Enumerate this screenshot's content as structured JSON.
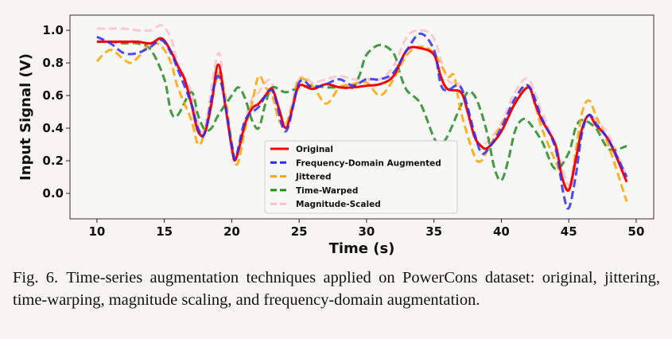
{
  "chart_data": {
    "type": "line",
    "title": "",
    "xlabel": "Time (s)",
    "ylabel": "Input Signal (V)",
    "xlim": [
      8.0,
      51.3
    ],
    "ylim": [
      -0.156,
      1.093
    ],
    "xticks": [
      10,
      15,
      20,
      25,
      30,
      35,
      40,
      45,
      50
    ],
    "xtick_labels": [
      "10",
      "15",
      "20",
      "25",
      "30",
      "35",
      "40",
      "45",
      "50"
    ],
    "yticks": [
      0.0,
      0.2,
      0.4,
      0.6,
      0.8,
      1.0
    ],
    "ytick_labels": [
      "0.0",
      "0.2",
      "0.4",
      "0.6",
      "0.8",
      "1.0"
    ],
    "grid": false,
    "legend_position": "lower-center",
    "series": [
      {
        "name": "Original",
        "color": "#ff0000",
        "style": "solid",
        "x": [
          10,
          11,
          12,
          13,
          14,
          14.8,
          15.5,
          16,
          16.5,
          17,
          17.5,
          18,
          18.5,
          19,
          19.5,
          20,
          20.3,
          21,
          21.5,
          22,
          22.5,
          23,
          23.5,
          24,
          24.5,
          25,
          26,
          27,
          28,
          29,
          30,
          31,
          32,
          33,
          34,
          35,
          35.5,
          36,
          37,
          37.5,
          38,
          38.5,
          39,
          40,
          41,
          42,
          42.5,
          43,
          44,
          44.5,
          45,
          45.5,
          46,
          46.5,
          47,
          48,
          49.3
        ],
        "y": [
          0.93,
          0.93,
          0.93,
          0.93,
          0.92,
          0.95,
          0.87,
          0.78,
          0.7,
          0.55,
          0.38,
          0.37,
          0.55,
          0.79,
          0.55,
          0.28,
          0.21,
          0.43,
          0.52,
          0.55,
          0.6,
          0.64,
          0.52,
          0.4,
          0.52,
          0.66,
          0.64,
          0.67,
          0.65,
          0.65,
          0.66,
          0.67,
          0.72,
          0.88,
          0.89,
          0.85,
          0.72,
          0.64,
          0.62,
          0.5,
          0.35,
          0.29,
          0.28,
          0.38,
          0.55,
          0.65,
          0.55,
          0.45,
          0.3,
          0.1,
          0.02,
          0.2,
          0.4,
          0.48,
          0.42,
          0.32,
          0.07
        ]
      },
      {
        "name": "Frequency-Domain Augmented",
        "color": "#2b2bff",
        "style": "dashed",
        "x": [
          10,
          11,
          12,
          13,
          14,
          14.8,
          15.5,
          16,
          17,
          17.5,
          18,
          19,
          20,
          20.3,
          21,
          22,
          23,
          24,
          25,
          26,
          27,
          28,
          29,
          30,
          31,
          32,
          33,
          34,
          35,
          35.5,
          36,
          37,
          38,
          38.5,
          39,
          40,
          41,
          42,
          43,
          44,
          44.6,
          45,
          45.5,
          46,
          46.5,
          47,
          48,
          49.3
        ],
        "y": [
          0.96,
          0.92,
          0.86,
          0.86,
          0.9,
          0.94,
          0.86,
          0.76,
          0.55,
          0.4,
          0.37,
          0.72,
          0.3,
          0.22,
          0.45,
          0.53,
          0.63,
          0.38,
          0.68,
          0.65,
          0.67,
          0.7,
          0.66,
          0.7,
          0.7,
          0.74,
          0.88,
          0.98,
          0.88,
          0.67,
          0.63,
          0.65,
          0.37,
          0.25,
          0.27,
          0.4,
          0.58,
          0.66,
          0.46,
          0.28,
          0.0,
          -0.09,
          0.1,
          0.38,
          0.48,
          0.43,
          0.32,
          0.1
        ]
      },
      {
        "name": "Jittered",
        "color": "#ffa500",
        "style": "dashed",
        "x": [
          10,
          11,
          12,
          12.5,
          13,
          14,
          14.8,
          15.5,
          16,
          17,
          17.5,
          18,
          19,
          19.5,
          20.3,
          21,
          21.5,
          22,
          22.5,
          23,
          23.5,
          24,
          24.5,
          25,
          26,
          27,
          28,
          29,
          30,
          31,
          32,
          33,
          34,
          35,
          36,
          36.5,
          37,
          38,
          38.5,
          39,
          40,
          41,
          42,
          43,
          44,
          45,
          45.5,
          46,
          46.5,
          47,
          48,
          49.3
        ],
        "y": [
          0.81,
          0.88,
          0.82,
          0.8,
          0.83,
          0.92,
          0.9,
          0.8,
          0.65,
          0.45,
          0.3,
          0.38,
          0.73,
          0.6,
          0.18,
          0.4,
          0.55,
          0.72,
          0.65,
          0.6,
          0.45,
          0.42,
          0.55,
          0.7,
          0.66,
          0.55,
          0.65,
          0.67,
          0.68,
          0.6,
          0.7,
          0.85,
          0.9,
          0.86,
          0.72,
          0.72,
          0.5,
          0.23,
          0.2,
          0.27,
          0.42,
          0.56,
          0.66,
          0.4,
          0.2,
          0.02,
          0.25,
          0.5,
          0.57,
          0.48,
          0.28,
          -0.05
        ]
      },
      {
        "name": "Time-Warped",
        "color": "#228b22",
        "style": "dashed",
        "x": [
          10,
          11,
          12,
          13,
          14,
          15,
          15.5,
          16,
          17,
          17.5,
          18,
          18.5,
          19,
          20,
          20.5,
          21,
          21.5,
          22,
          22.5,
          23,
          24,
          25,
          26,
          27,
          28,
          29,
          29.5,
          30,
          31,
          32,
          32.5,
          33,
          34,
          35,
          35.5,
          36,
          37,
          37.5,
          38,
          38.5,
          39,
          39.5,
          40,
          40.5,
          41,
          41.5,
          42,
          43,
          44,
          45,
          45.5,
          46,
          47,
          48,
          49.3
        ],
        "y": [
          0.93,
          0.93,
          0.92,
          0.92,
          0.88,
          0.7,
          0.5,
          0.48,
          0.62,
          0.48,
          0.39,
          0.4,
          0.48,
          0.6,
          0.65,
          0.58,
          0.45,
          0.4,
          0.55,
          0.65,
          0.62,
          0.65,
          0.66,
          0.65,
          0.65,
          0.65,
          0.73,
          0.85,
          0.91,
          0.86,
          0.73,
          0.63,
          0.55,
          0.34,
          0.31,
          0.35,
          0.54,
          0.62,
          0.6,
          0.5,
          0.35,
          0.15,
          0.08,
          0.2,
          0.38,
          0.45,
          0.44,
          0.32,
          0.15,
          0.25,
          0.4,
          0.45,
          0.4,
          0.27,
          0.29
        ]
      },
      {
        "name": "Magnitude-Scaled",
        "color": "#ffc0cb",
        "style": "dashed",
        "x": [
          10,
          11,
          12,
          13,
          14,
          14.8,
          15.5,
          16,
          17,
          17.5,
          18,
          19,
          19.5,
          20.3,
          21,
          21.5,
          22,
          22.5,
          23,
          24,
          25,
          26,
          27,
          28,
          29,
          30,
          31,
          32,
          33,
          34,
          35,
          36,
          37,
          38,
          38.5,
          39,
          40,
          41,
          42,
          43,
          44,
          45,
          45.5,
          46,
          46.5,
          47,
          48,
          49.3
        ],
        "y": [
          1.01,
          1.01,
          1.01,
          1.0,
          1.0,
          1.03,
          0.95,
          0.8,
          0.62,
          0.43,
          0.4,
          0.86,
          0.55,
          0.22,
          0.45,
          0.58,
          0.62,
          0.68,
          0.67,
          0.4,
          0.7,
          0.68,
          0.7,
          0.72,
          0.7,
          0.7,
          0.7,
          0.78,
          0.96,
          1.0,
          0.95,
          0.7,
          0.65,
          0.35,
          0.3,
          0.32,
          0.43,
          0.62,
          0.7,
          0.5,
          0.3,
          0.05,
          0.2,
          0.4,
          0.48,
          0.45,
          0.35,
          0.1
        ]
      }
    ]
  },
  "caption": {
    "label": "Fig. 6.",
    "text": "Time-series augmentation techniques applied on PowerCons dataset: original, jittering, time-warping, magnitude scaling, and frequency-domain augmentation."
  }
}
